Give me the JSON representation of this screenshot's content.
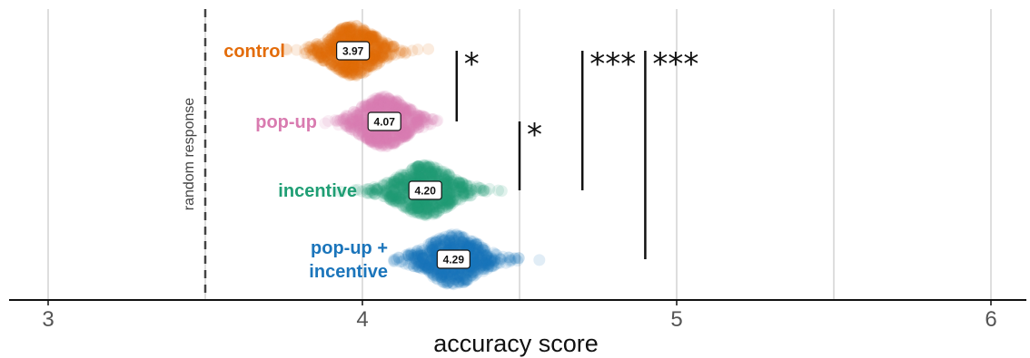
{
  "chart_data": {
    "type": "scatter",
    "xlabel": "accuracy score",
    "xlim": [
      2.9,
      6.1
    ],
    "xticks": [
      3,
      4,
      5,
      6
    ],
    "xtick_labels": [
      "3",
      "4",
      "5",
      "6"
    ],
    "minor_grid": [
      3.5,
      4.5,
      5.5
    ],
    "grid": true,
    "reference_line": {
      "x": 3.5,
      "label": "random response"
    },
    "groups": [
      {
        "name": "control",
        "label_lines": [
          "control"
        ],
        "mean": 3.97,
        "mean_label": "3.97",
        "color": "#e36c0a",
        "spread": 0.15
      },
      {
        "name": "pop-up",
        "label_lines": [
          "pop-up"
        ],
        "mean": 4.07,
        "mean_label": "4.07",
        "color": "#d97bb0",
        "spread": 0.15
      },
      {
        "name": "incentive",
        "label_lines": [
          "incentive"
        ],
        "mean": 4.2,
        "mean_label": "4.20",
        "color": "#1f9e74",
        "spread": 0.17
      },
      {
        "name": "pop-up + incentive",
        "label_lines": [
          "pop-up +",
          "incentive"
        ],
        "mean": 4.29,
        "mean_label": "4.29",
        "color": "#1b75bb",
        "spread": 0.17
      }
    ],
    "significance": [
      {
        "x": 4.3,
        "from_group": 0,
        "to_group": 1,
        "label": "*"
      },
      {
        "x": 4.5,
        "from_group": 1,
        "to_group": 2,
        "label": "*"
      },
      {
        "x": 4.7,
        "from_group": 0,
        "to_group": 2,
        "label": "***"
      },
      {
        "x": 4.9,
        "from_group": 0,
        "to_group": 3,
        "label": "***"
      }
    ]
  }
}
